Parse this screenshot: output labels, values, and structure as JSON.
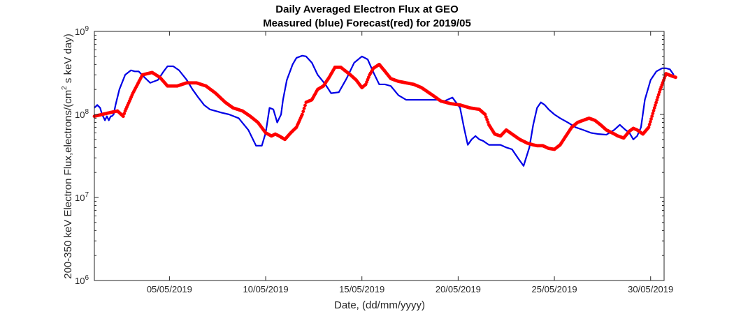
{
  "chart_data": {
    "type": "line",
    "title": "Daily Averaged Electron Flux at GEO",
    "subtitle": "Measured (blue) Forecast(red) for 2019/05",
    "xlabel": "Date, (dd/mm/yyyy)",
    "ylabel_base": "200-350 keV Electron Flux,electrons/(cm",
    "ylabel_sup": "2",
    "ylabel_tail": " s keV day)",
    "xlim": [
      0,
      29.6
    ],
    "x_ticks": [
      {
        "x": 3.9,
        "label": "05/05/2019"
      },
      {
        "x": 8.9,
        "label": "10/05/2019"
      },
      {
        "x": 13.9,
        "label": "15/05/2019"
      },
      {
        "x": 18.9,
        "label": "20/05/2019"
      },
      {
        "x": 23.9,
        "label": "25/05/2019"
      },
      {
        "x": 28.9,
        "label": "30/05/2019"
      }
    ],
    "y_scale": "log",
    "ylim": [
      1000000,
      1000000000
    ],
    "y_ticks": [
      {
        "value": 1000000,
        "base": "10",
        "exp": "6"
      },
      {
        "value": 10000000,
        "base": "10",
        "exp": "7"
      },
      {
        "value": 100000000,
        "base": "10",
        "exp": "8"
      },
      {
        "value": 1000000000,
        "base": "10",
        "exp": "9"
      }
    ],
    "series": [
      {
        "name": "Measured",
        "color": "#0000e6",
        "style": "line",
        "x": [
          0.0,
          0.15,
          0.3,
          0.4,
          0.5,
          0.55,
          0.6,
          0.65,
          0.7,
          0.75,
          0.8,
          0.85,
          0.9,
          1.0,
          1.1,
          1.3,
          1.6,
          1.9,
          2.1,
          2.3,
          2.6,
          2.9,
          3.3,
          3.6,
          3.8,
          4.1,
          4.4,
          4.8,
          5.1,
          5.4,
          5.7,
          6.0,
          6.3,
          6.6,
          7.0,
          7.5,
          8.0,
          8.4,
          8.7,
          8.9,
          9.1,
          9.3,
          9.5,
          9.7,
          9.8,
          10.0,
          10.3,
          10.5,
          10.8,
          11.0,
          11.3,
          11.6,
          12.0,
          12.3,
          12.7,
          13.1,
          13.5,
          13.9,
          14.2,
          14.5,
          14.8,
          15.1,
          15.4,
          15.8,
          16.2,
          16.6,
          17.0,
          17.4,
          17.8,
          18.2,
          18.6,
          19.0,
          19.2,
          19.4,
          19.6,
          19.8,
          20.0,
          20.2,
          20.5,
          20.8,
          21.1,
          21.4,
          21.7,
          22.0,
          22.3,
          22.6,
          22.8,
          23.0,
          23.2,
          23.4,
          23.6,
          23.9,
          24.2,
          24.6,
          25.0,
          25.4,
          25.8,
          26.2,
          26.6,
          27.0,
          27.3,
          27.6,
          27.8,
          28.0,
          28.2,
          28.4,
          28.6,
          28.9,
          29.2,
          29.5,
          29.7,
          29.9,
          30.1
        ],
        "y": [
          120000000,
          130000000,
          120000000,
          100000000,
          90000000,
          85000000,
          90000000,
          95000000,
          90000000,
          85000000,
          90000000,
          95000000,
          95000000,
          100000000,
          130000000,
          200000000,
          300000000,
          340000000,
          330000000,
          330000000,
          280000000,
          240000000,
          260000000,
          330000000,
          380000000,
          380000000,
          340000000,
          260000000,
          200000000,
          160000000,
          130000000,
          115000000,
          110000000,
          105000000,
          100000000,
          90000000,
          65000000,
          42000000,
          42000000,
          60000000,
          120000000,
          115000000,
          80000000,
          100000000,
          150000000,
          260000000,
          400000000,
          480000000,
          510000000,
          500000000,
          420000000,
          300000000,
          230000000,
          180000000,
          185000000,
          270000000,
          420000000,
          500000000,
          460000000,
          320000000,
          230000000,
          230000000,
          220000000,
          170000000,
          150000000,
          150000000,
          150000000,
          150000000,
          150000000,
          145000000,
          160000000,
          120000000,
          70000000,
          43000000,
          50000000,
          55000000,
          50000000,
          48000000,
          43000000,
          43000000,
          43000000,
          40000000,
          38000000,
          30000000,
          24000000,
          40000000,
          75000000,
          120000000,
          140000000,
          130000000,
          115000000,
          100000000,
          90000000,
          80000000,
          70000000,
          65000000,
          60000000,
          58000000,
          57000000,
          65000000,
          75000000,
          65000000,
          60000000,
          50000000,
          55000000,
          70000000,
          150000000,
          260000000,
          330000000,
          360000000,
          360000000,
          350000000,
          300000000
        ]
      },
      {
        "name": "Forecast",
        "color": "#ff0000",
        "style": "dots",
        "x": [
          0.0,
          0.4,
          0.8,
          1.2,
          1.5,
          1.6,
          2.0,
          2.5,
          3.0,
          3.4,
          3.8,
          4.3,
          4.8,
          5.3,
          5.8,
          6.3,
          6.8,
          7.2,
          7.7,
          8.1,
          8.5,
          8.9,
          9.2,
          9.4,
          9.6,
          9.9,
          10.2,
          10.5,
          10.8,
          11.0,
          11.3,
          11.6,
          11.9,
          12.2,
          12.5,
          12.8,
          13.0,
          13.3,
          13.6,
          13.9,
          14.1,
          14.3,
          14.5,
          14.8,
          15.1,
          15.4,
          15.8,
          16.2,
          16.6,
          17.0,
          17.5,
          18.0,
          18.5,
          19.0,
          19.5,
          20.0,
          20.3,
          20.5,
          20.8,
          21.1,
          21.4,
          21.7,
          22.1,
          22.5,
          22.8,
          23.0,
          23.3,
          23.6,
          23.9,
          24.2,
          24.5,
          24.8,
          25.1,
          25.4,
          25.7,
          26.0,
          26.3,
          26.6,
          26.9,
          27.2,
          27.5,
          27.8,
          28.0,
          28.2,
          28.5,
          28.8,
          29.1,
          29.4,
          29.7,
          30.0,
          30.2
        ],
        "y": [
          95000000,
          100000000,
          105000000,
          110000000,
          95000000,
          110000000,
          180000000,
          300000000,
          320000000,
          280000000,
          220000000,
          220000000,
          240000000,
          240000000,
          220000000,
          180000000,
          140000000,
          120000000,
          110000000,
          95000000,
          80000000,
          60000000,
          55000000,
          58000000,
          55000000,
          50000000,
          60000000,
          70000000,
          100000000,
          140000000,
          150000000,
          200000000,
          220000000,
          280000000,
          370000000,
          370000000,
          340000000,
          300000000,
          260000000,
          210000000,
          230000000,
          300000000,
          360000000,
          400000000,
          330000000,
          270000000,
          250000000,
          240000000,
          230000000,
          210000000,
          175000000,
          145000000,
          135000000,
          130000000,
          120000000,
          115000000,
          100000000,
          75000000,
          58000000,
          55000000,
          65000000,
          58000000,
          50000000,
          45000000,
          43000000,
          42000000,
          42000000,
          39000000,
          38000000,
          43000000,
          55000000,
          70000000,
          80000000,
          85000000,
          90000000,
          85000000,
          75000000,
          65000000,
          60000000,
          55000000,
          52000000,
          63000000,
          68000000,
          65000000,
          58000000,
          70000000,
          120000000,
          200000000,
          310000000,
          290000000,
          280000000
        ]
      }
    ]
  }
}
